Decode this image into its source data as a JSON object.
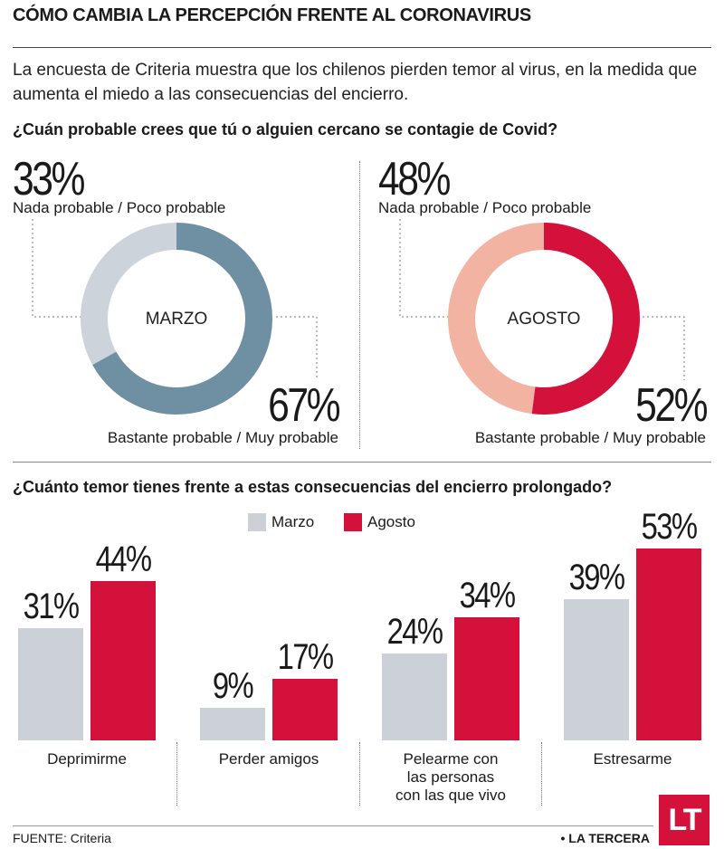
{
  "header": {
    "title": "CÓMO CAMBIA LA PERCEPCIÓN FRENTE AL CORONAVIRUS",
    "subtitle": "La encuesta de Criteria muestra que los chilenos pierden temor al virus, en la medida que aumenta el miedo a las consecuencias del encierro."
  },
  "colors": {
    "marzo_dark": "#6f8fa3",
    "marzo_light": "#cdd3da",
    "agosto_dark": "#d4113a",
    "agosto_light": "#f2b3a3",
    "bar_marzo": "#ccd1d7",
    "bar_agosto": "#d4113a"
  },
  "chart_data": [
    {
      "type": "pie",
      "title": "¿Cuán probable crees que tú o alguien cercano se contagie de Covid?",
      "center_label": "MARZO",
      "slices": [
        {
          "label": "Nada probable / Poco probable",
          "value": 33,
          "display": "33%"
        },
        {
          "label": "Bastante probable / Muy probable",
          "value": 67,
          "display": "67%"
        }
      ]
    },
    {
      "type": "pie",
      "title": "¿Cuán probable crees que tú o alguien cercano se contagie de Covid?",
      "center_label": "AGOSTO",
      "slices": [
        {
          "label": "Nada probable / Poco probable",
          "value": 48,
          "display": "48%"
        },
        {
          "label": "Bastante probable / Muy probable",
          "value": 52,
          "display": "52%"
        }
      ]
    },
    {
      "type": "bar",
      "title": "¿Cuánto temor tienes frente a estas consecuencias del encierro prolongado?",
      "categories": [
        "Deprimirme",
        "Perder amigos",
        "Pelearme con las personas con las que vivo",
        "Estresarme"
      ],
      "category_lines": [
        [
          "Deprimirme"
        ],
        [
          "Perder amigos"
        ],
        [
          "Pelearme con",
          "las personas",
          "con las que vivo"
        ],
        [
          "Estresarme"
        ]
      ],
      "series": [
        {
          "name": "Marzo",
          "values": [
            31,
            9,
            24,
            39
          ],
          "labels": [
            "31%",
            "9%",
            "24%",
            "39%"
          ]
        },
        {
          "name": "Agosto",
          "values": [
            44,
            17,
            34,
            53
          ],
          "labels": [
            "44%",
            "17%",
            "34%",
            "53%"
          ]
        }
      ],
      "ylim": [
        0,
        60
      ]
    }
  ],
  "footer": {
    "source": "FUENTE: Criteria",
    "brand": "• LA TERCERA",
    "logo": "LT"
  }
}
